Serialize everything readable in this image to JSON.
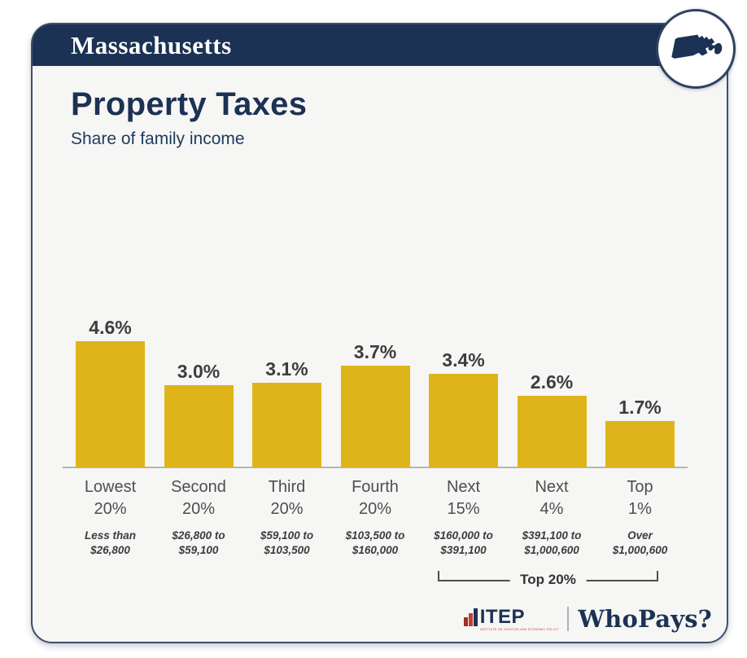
{
  "header": {
    "state": "Massachusetts"
  },
  "badge": {
    "icon": "massachusetts-state-icon"
  },
  "title": "Property Taxes",
  "subtitle": "Share of family income",
  "chart_data": {
    "type": "bar",
    "title": "Property Taxes",
    "subtitle": "Share of family income",
    "unit": "percent of family income",
    "categories": [
      "Lowest 20%",
      "Second 20%",
      "Third 20%",
      "Fourth 20%",
      "Next 15%",
      "Next 4%",
      "Top 1%"
    ],
    "values": [
      4.6,
      3.0,
      3.1,
      3.7,
      3.4,
      2.6,
      1.7
    ],
    "value_labels": [
      "4.6%",
      "3.0%",
      "3.1%",
      "3.7%",
      "3.4%",
      "2.6%",
      "1.7%"
    ],
    "category_lines": [
      [
        "Lowest",
        "20%"
      ],
      [
        "Second",
        "20%"
      ],
      [
        "Third",
        "20%"
      ],
      [
        "Fourth",
        "20%"
      ],
      [
        "Next",
        "15%"
      ],
      [
        "Next",
        "4%"
      ],
      [
        "Top",
        "1%"
      ]
    ],
    "income_ranges": [
      "Less than $26,800",
      "$26,800 to $59,100",
      "$59,100 to $103,500",
      "$103,500 to $160,000",
      "$160,000 to $391,100",
      "$391,100 to $1,000,600",
      "Over $1,000,600"
    ],
    "income_lines": [
      [
        "Less than",
        "$26,800"
      ],
      [
        "$26,800 to",
        "$59,100"
      ],
      [
        "$59,100 to",
        "$103,500"
      ],
      [
        "$103,500 to",
        "$160,000"
      ],
      [
        "$160,000 to",
        "$391,100"
      ],
      [
        "$391,100 to",
        "$1,000,600"
      ],
      [
        "Over",
        "$1,000,600"
      ]
    ],
    "ylim": [
      0,
      5
    ],
    "grid": false,
    "legend": "none",
    "bar_color": "#dfb41a",
    "bracket": {
      "label": "Top 20%",
      "from_index": 4,
      "to_index": 6
    }
  },
  "footer": {
    "itep_label": "ITEP",
    "itep_tagline": "INSTITUTE ON TAXATION AND ECONOMIC POLICY",
    "whopays_label": "WhoPays?"
  },
  "colors": {
    "navy": "#1c3254",
    "gold": "#dfb41a",
    "card_background": "#f6f6f5",
    "itep_red": "#c23f33",
    "value_label": "#3d3d3d",
    "axis_line": "#b5b5b5"
  }
}
